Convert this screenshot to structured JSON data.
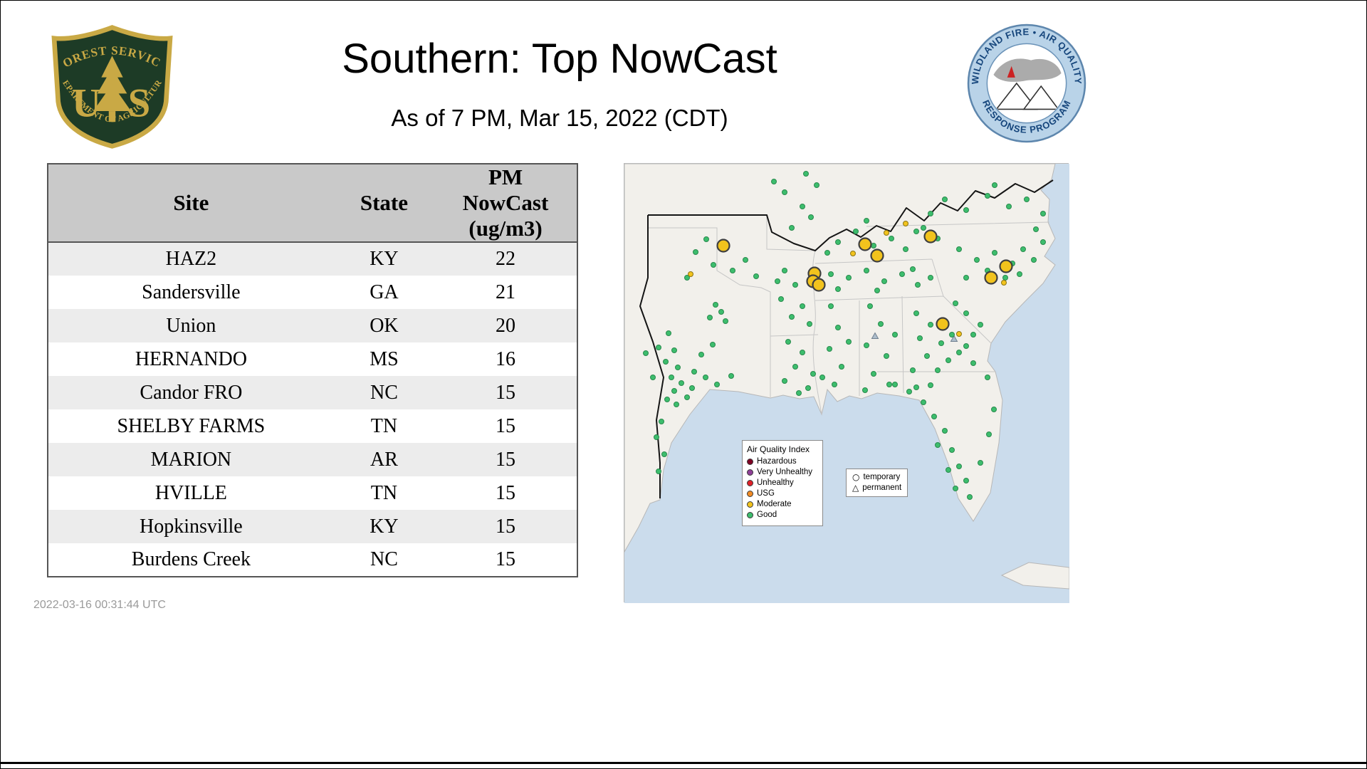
{
  "header": {
    "title": "Southern: Top NowCast",
    "subtitle": "As of  7 PM, Mar 15, 2022 (CDT)"
  },
  "footer": {
    "timestamp": "2022-03-16 00:31:44 UTC"
  },
  "logos": {
    "usfs": {
      "arc_top": "FOREST SERVICE",
      "letter_left": "U",
      "letter_right": "S",
      "arc_bottom": "DEPARTMENT OF AGRICULTURE",
      "shield_color": "#1d3b26",
      "gold_color": "#c9a945"
    },
    "wfaqrp": {
      "arc_top": "WILDLAND FIRE • AIR QUALITY",
      "arc_bottom": "RESPONSE PROGRAM",
      "ring_color": "#b9d3e8",
      "text_color": "#16467c"
    }
  },
  "table": {
    "columns": [
      "Site",
      "State",
      "PM NowCast (ug/m3)"
    ],
    "rows": [
      [
        "HAZ2",
        "KY",
        "22"
      ],
      [
        "Sandersville",
        "GA",
        "21"
      ],
      [
        "Union",
        "OK",
        "20"
      ],
      [
        "HERNANDO",
        "MS",
        "16"
      ],
      [
        "Candor FRO",
        "NC",
        "15"
      ],
      [
        "SHELBY FARMS",
        "TN",
        "15"
      ],
      [
        "MARION",
        "AR",
        "15"
      ],
      [
        "HVILLE",
        "TN",
        "15"
      ],
      [
        "Hopkinsville",
        "KY",
        "15"
      ],
      [
        "Burdens Creek",
        "NC",
        "15"
      ]
    ]
  },
  "map": {
    "colors": {
      "water": "#cbdcec",
      "land": "#f2f0eb",
      "state_line": "#c6c6c6",
      "region_boundary": "#141414",
      "good": "#3dbd6d",
      "moderate": "#f2c31d",
      "permanent_gray": "#adbdcb"
    },
    "legend": {
      "title": "Air Quality Index",
      "items": [
        {
          "label": "Hazardous",
          "color": "#7e0023"
        },
        {
          "label": "Very Unhealthy",
          "color": "#8f3f97"
        },
        {
          "label": "Unhealthy",
          "color": "#e02028"
        },
        {
          "label": "USG",
          "color": "#f28b24"
        },
        {
          "label": "Moderate",
          "color": "#f2c31d"
        },
        {
          "label": "Good",
          "color": "#3dbd6d"
        }
      ]
    },
    "marker_legend": {
      "temporary_label": "temporary",
      "permanent_label": "permanent"
    },
    "markers": {
      "good": [
        [
          62,
          238
        ],
        [
          48,
          258
        ],
        [
          70,
          262
        ],
        [
          58,
          278
        ],
        [
          75,
          286
        ],
        [
          66,
          300
        ],
        [
          80,
          308
        ],
        [
          95,
          315
        ],
        [
          70,
          319
        ],
        [
          88,
          328
        ],
        [
          60,
          331
        ],
        [
          73,
          338
        ],
        [
          52,
          362
        ],
        [
          45,
          384
        ],
        [
          56,
          408
        ],
        [
          48,
          432
        ],
        [
          40,
          300
        ],
        [
          30,
          266
        ],
        [
          98,
          292
        ],
        [
          114,
          300
        ],
        [
          130,
          310
        ],
        [
          150,
          298
        ],
        [
          108,
          268
        ],
        [
          124,
          254
        ],
        [
          128,
          198
        ],
        [
          136,
          208
        ],
        [
          120,
          216
        ],
        [
          142,
          221
        ],
        [
          100,
          124
        ],
        [
          125,
          142
        ],
        [
          88,
          160
        ],
        [
          152,
          150
        ],
        [
          170,
          135
        ],
        [
          185,
          158
        ],
        [
          140,
          120
        ],
        [
          115,
          106
        ],
        [
          225,
          40
        ],
        [
          250,
          60
        ],
        [
          235,
          90
        ],
        [
          262,
          75
        ],
        [
          210,
          25
        ],
        [
          270,
          30
        ],
        [
          255,
          14
        ],
        [
          225,
          150
        ],
        [
          240,
          170
        ],
        [
          220,
          190
        ],
        [
          250,
          200
        ],
        [
          235,
          215
        ],
        [
          260,
          225
        ],
        [
          215,
          165
        ],
        [
          230,
          250
        ],
        [
          250,
          265
        ],
        [
          240,
          285
        ],
        [
          265,
          295
        ],
        [
          225,
          305
        ],
        [
          258,
          315
        ],
        [
          278,
          300
        ],
        [
          245,
          322
        ],
        [
          290,
          200
        ],
        [
          300,
          230
        ],
        [
          288,
          260
        ],
        [
          305,
          285
        ],
        [
          295,
          310
        ],
        [
          315,
          250
        ],
        [
          345,
          200
        ],
        [
          360,
          225
        ],
        [
          340,
          255
        ],
        [
          368,
          270
        ],
        [
          350,
          295
        ],
        [
          372,
          310
        ],
        [
          338,
          318
        ],
        [
          380,
          240
        ],
        [
          290,
          155
        ],
        [
          315,
          160
        ],
        [
          340,
          150
        ],
        [
          365,
          165
        ],
        [
          390,
          155
        ],
        [
          412,
          170
        ],
        [
          430,
          160
        ],
        [
          300,
          176
        ],
        [
          355,
          178
        ],
        [
          405,
          148
        ],
        [
          300,
          110
        ],
        [
          325,
          95
        ],
        [
          350,
          115
        ],
        [
          375,
          105
        ],
        [
          395,
          120
        ],
        [
          410,
          95
        ],
        [
          285,
          125
        ],
        [
          340,
          80
        ],
        [
          410,
          210
        ],
        [
          430,
          226
        ],
        [
          415,
          245
        ],
        [
          445,
          252
        ],
        [
          425,
          270
        ],
        [
          455,
          276
        ],
        [
          440,
          290
        ],
        [
          470,
          265
        ],
        [
          460,
          240
        ],
        [
          480,
          256
        ],
        [
          405,
          290
        ],
        [
          490,
          280
        ],
        [
          380,
          310
        ],
        [
          400,
          320
        ],
        [
          420,
          335
        ],
        [
          435,
          355
        ],
        [
          450,
          375
        ],
        [
          440,
          395
        ],
        [
          460,
          402
        ],
        [
          470,
          425
        ],
        [
          480,
          445
        ],
        [
          465,
          456
        ],
        [
          485,
          468
        ],
        [
          455,
          430
        ],
        [
          410,
          314
        ],
        [
          430,
          311
        ],
        [
          510,
          300
        ],
        [
          519,
          345
        ],
        [
          512,
          380
        ],
        [
          500,
          420
        ],
        [
          480,
          210
        ],
        [
          500,
          226
        ],
        [
          465,
          196
        ],
        [
          490,
          240
        ],
        [
          470,
          120
        ],
        [
          495,
          135
        ],
        [
          520,
          125
        ],
        [
          545,
          140
        ],
        [
          560,
          120
        ],
        [
          575,
          135
        ],
        [
          510,
          150
        ],
        [
          535,
          160
        ],
        [
          555,
          155
        ],
        [
          480,
          160
        ],
        [
          588,
          110
        ],
        [
          578,
          92
        ],
        [
          450,
          50
        ],
        [
          480,
          65
        ],
        [
          510,
          45
        ],
        [
          540,
          60
        ],
        [
          565,
          50
        ],
        [
          588,
          70
        ],
        [
          520,
          30
        ],
        [
          430,
          70
        ],
        [
          420,
          90
        ],
        [
          440,
          105
        ]
      ],
      "moderate_large": [
        [
          139,
          115
        ],
        [
          338,
          113
        ],
        [
          355,
          129
        ],
        [
          430,
          102
        ],
        [
          267,
          154
        ],
        [
          265,
          165
        ],
        [
          273,
          170
        ],
        [
          515,
          160
        ],
        [
          536,
          144
        ],
        [
          447,
          225
        ]
      ],
      "moderate_small": [
        [
          368,
          97
        ],
        [
          93,
          155
        ],
        [
          470,
          239
        ],
        [
          533,
          167
        ],
        [
          395,
          84
        ],
        [
          321,
          126
        ]
      ],
      "permanent": [
        [
          463,
          246
        ],
        [
          352,
          242
        ]
      ]
    }
  },
  "chart_data": {
    "type": "table",
    "title": "Southern: Top NowCast",
    "subtitle": "As of 7 PM, Mar 15, 2022 (CDT)",
    "columns": [
      "Site",
      "State",
      "PM NowCast (ug/m3)"
    ],
    "rows": [
      [
        "HAZ2",
        "KY",
        22
      ],
      [
        "Sandersville",
        "GA",
        21
      ],
      [
        "Union",
        "OK",
        20
      ],
      [
        "HERNANDO",
        "MS",
        16
      ],
      [
        "Candor FRO",
        "NC",
        15
      ],
      [
        "SHELBY FARMS",
        "TN",
        15
      ],
      [
        "MARION",
        "AR",
        15
      ],
      [
        "HVILLE",
        "TN",
        15
      ],
      [
        "Hopkinsville",
        "KY",
        15
      ],
      [
        "Burdens Creek",
        "NC",
        15
      ]
    ],
    "notes": "Map of southern US showing monitor locations colored by AQI category; mostly Good (green) with several Moderate (yellow) sites."
  }
}
